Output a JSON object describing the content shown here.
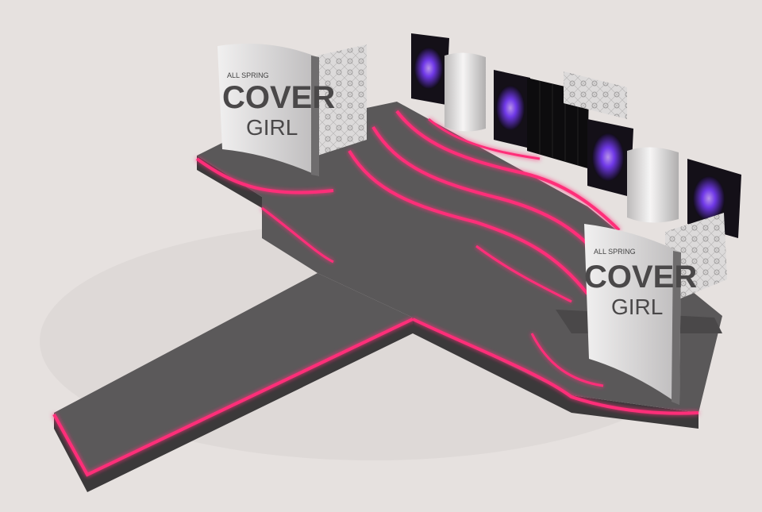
{
  "scene": {
    "description_hidden": "",
    "colors": {
      "background": "#e6e1df",
      "stage_top": "#5a5859",
      "stage_side": "#3d3b3c",
      "neon": "#ff2f79",
      "panel": "#d8d6d7",
      "column": "#e8e6e6",
      "screen": "#141018",
      "sparkle": "#8a4dff"
    },
    "left_sign": {
      "top_text": "ALL SPRING",
      "brand_line1": "COVER",
      "brand_line2": "GIRL"
    },
    "right_sign": {
      "top_text": "ALL SPRING",
      "brand_line1": "COVER",
      "brand_line2": "GIRL"
    }
  }
}
